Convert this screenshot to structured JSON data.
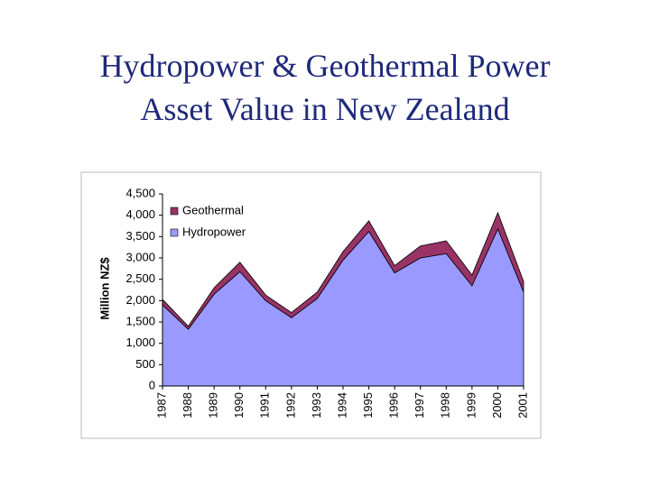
{
  "chart_data": {
    "type": "stacked_area",
    "title": [
      "Hydropower & Geothermal Power",
      "Asset Value in New Zealand"
    ],
    "ylabel": "Million NZ$",
    "categories": [
      "1987",
      "1988",
      "1989",
      "1990",
      "1991",
      "1992",
      "1993",
      "1994",
      "1995",
      "1996",
      "1997",
      "1998",
      "1999",
      "2000",
      "2001"
    ],
    "series": [
      {
        "name": "Hydropower",
        "color": "#9999ff",
        "values": [
          1900,
          1330,
          2150,
          2680,
          2000,
          1600,
          2050,
          2950,
          3620,
          2650,
          3000,
          3100,
          2350,
          3680,
          2200
        ]
      },
      {
        "name": "Geothermal",
        "color": "#993366",
        "values": [
          130,
          70,
          150,
          220,
          130,
          120,
          150,
          200,
          250,
          170,
          280,
          300,
          250,
          380,
          250
        ]
      }
    ],
    "ylim": [
      0,
      4500
    ],
    "yticks": [
      0,
      500,
      {
        "value": 1000,
        "label": "1,000"
      },
      {
        "value": 1500,
        "label": "1,500"
      },
      {
        "value": 2000,
        "label": "2,000"
      },
      {
        "value": 2500,
        "label": "2,500"
      },
      {
        "value": 3000,
        "label": "3,000"
      },
      {
        "value": 3500,
        "label": "3,500"
      },
      {
        "value": 4000,
        "label": "4,000"
      },
      {
        "value": 4500,
        "label": "4,500"
      }
    ],
    "legend": "upper left",
    "grid": false
  }
}
